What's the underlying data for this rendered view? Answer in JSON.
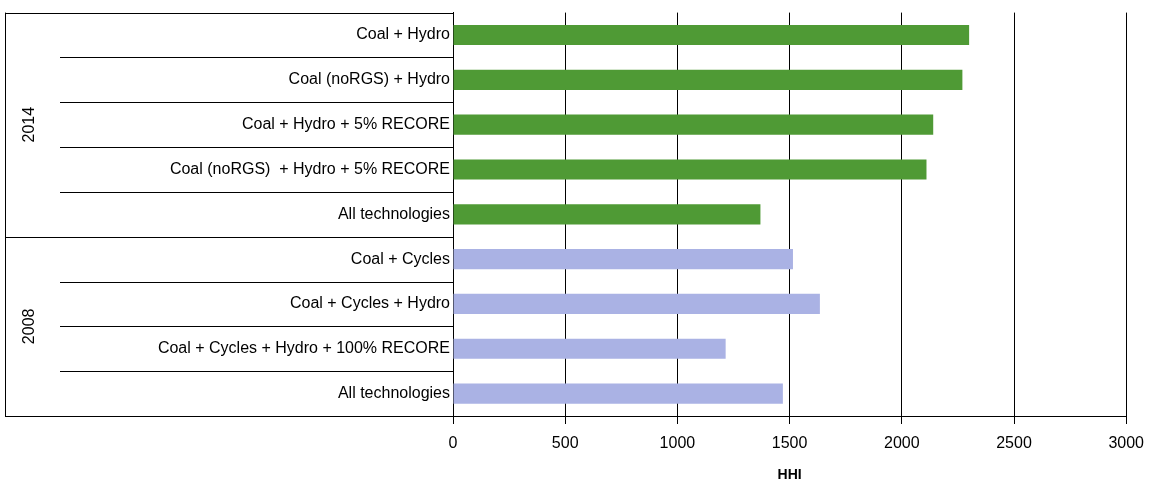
{
  "chart_data": {
    "type": "bar",
    "orientation": "horizontal",
    "xlabel": "HHI",
    "categories": [
      "Coal + Hydro",
      "Coal (noRGS) + Hydro",
      "Coal + Hydro + 5% RECORE",
      "Coal (noRGS)  + Hydro + 5% RECORE",
      "All technologies",
      "Coal + Cycles",
      "Coal + Cycles + Hydro",
      "Coal + Cycles + Hydro + 100% RECORE",
      "All technologies"
    ],
    "series": [
      {
        "color": "#4f9a35",
        "values": [
          2300,
          2270,
          2140,
          2110,
          1370,
          null,
          null,
          null,
          null
        ]
      },
      {
        "color": "#aab2e4",
        "values": [
          null,
          null,
          null,
          null,
          null,
          1515,
          1635,
          1215,
          1470
        ]
      }
    ],
    "annotations": [
      "2014",
      "2008"
    ],
    "xlim": [
      0,
      3000
    ],
    "xticks": [
      0,
      500,
      1000,
      1500,
      2000,
      2500,
      3000
    ],
    "grid": "x"
  }
}
